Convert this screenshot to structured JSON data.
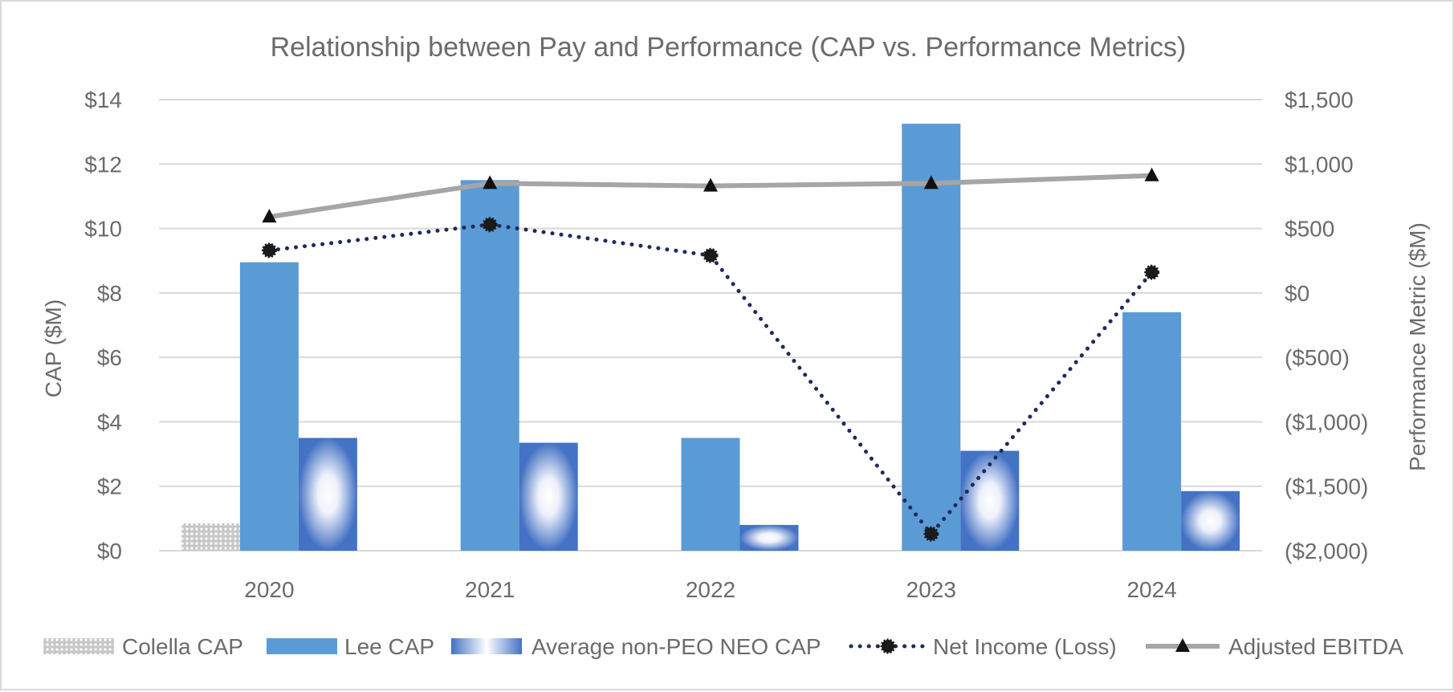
{
  "chart_data": {
    "type": "bar",
    "title": "Relationship between Pay and Performance (CAP vs. Performance Metrics)",
    "categories": [
      "2020",
      "2021",
      "2022",
      "2023",
      "2024"
    ],
    "ylabel": "CAP ($M)",
    "y2label": "Performance Metric ($M)",
    "ylim": [
      0,
      14
    ],
    "y2lim": [
      -2000,
      1500
    ],
    "yticks": [
      0,
      2,
      4,
      6,
      8,
      10,
      12,
      14
    ],
    "ytick_labels": [
      "$0",
      "$2",
      "$4",
      "$6",
      "$8",
      "$10",
      "$12",
      "$14"
    ],
    "y2ticks": [
      -2000,
      -1500,
      -1000,
      -500,
      0,
      500,
      1000,
      1500
    ],
    "y2tick_labels": [
      "($2,000)",
      "($1,500)",
      "($1,000)",
      "($500)",
      "$0",
      "$500",
      "$1,000",
      "$1,500"
    ],
    "grid": true,
    "legend_position": "bottom",
    "bar_series": [
      {
        "name": "Colella CAP",
        "axis": "left",
        "style": "dotted-pattern",
        "color": "#a6a6a6",
        "values": [
          0.85,
          null,
          null,
          null,
          null
        ]
      },
      {
        "name": "Lee CAP",
        "axis": "left",
        "style": "solid",
        "color": "#5b9bd5",
        "values": [
          8.95,
          11.5,
          3.5,
          13.25,
          7.4
        ]
      },
      {
        "name": "Average non-PEO NEO CAP",
        "axis": "left",
        "style": "radial-gradient",
        "color": "#4472c4",
        "values": [
          3.5,
          3.35,
          0.8,
          3.1,
          1.85
        ]
      }
    ],
    "line_series": [
      {
        "name": "Net Income (Loss)",
        "axis": "right",
        "style": "dotted",
        "marker": "circle",
        "color": "#1f2a5c",
        "values": [
          330,
          530,
          290,
          -1870,
          160
        ]
      },
      {
        "name": "Adjusted EBITDA",
        "axis": "right",
        "style": "solid",
        "marker": "triangle",
        "color": "#a6a6a6",
        "values": [
          590,
          850,
          830,
          850,
          910
        ]
      }
    ]
  }
}
